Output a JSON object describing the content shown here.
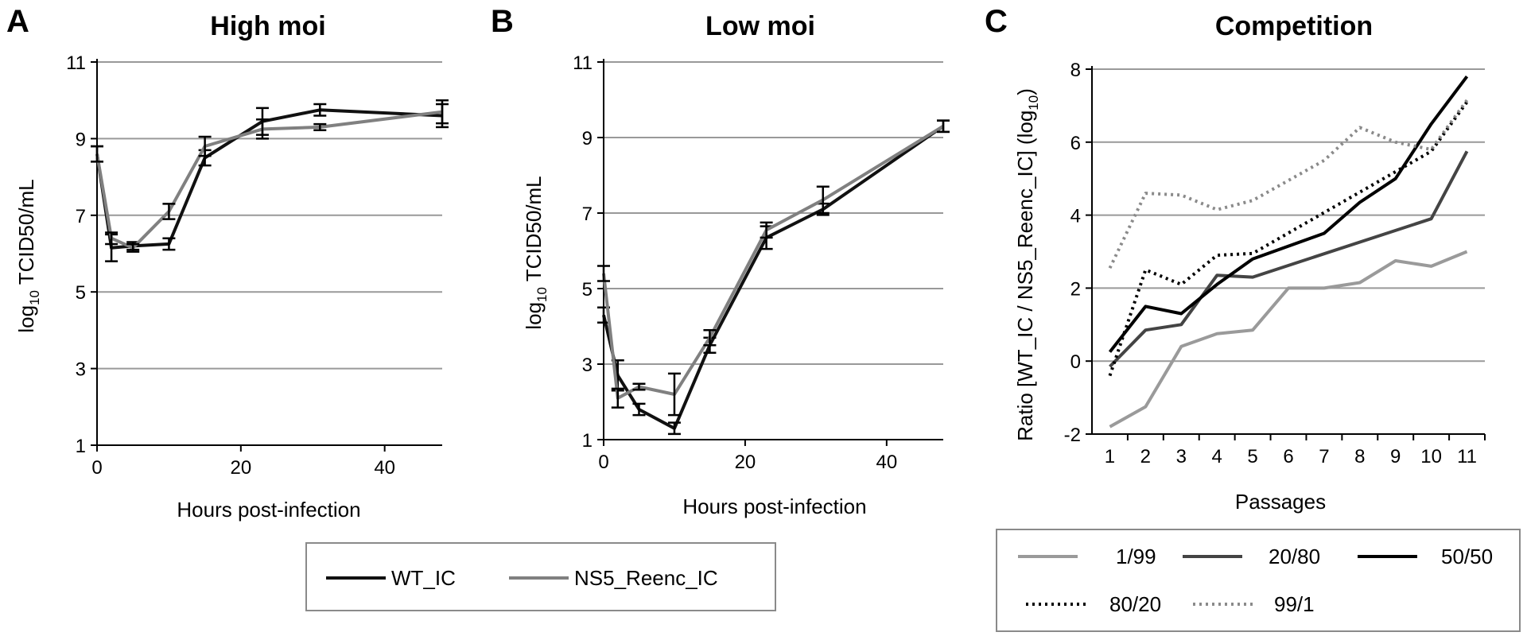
{
  "chart_data": [
    {
      "panel": "A",
      "type": "line",
      "title": "High moi",
      "xlabel": "Hours post-infection",
      "ylabel": {
        "prefix": "log",
        "sub": "10",
        "suffix": " TCID50/mL"
      },
      "xlim": [
        0,
        48
      ],
      "ylim": [
        1,
        11
      ],
      "xticks": [
        0,
        20,
        40
      ],
      "yticks": [
        1,
        3,
        5,
        7,
        9,
        11
      ],
      "grid": "horizontal",
      "series": [
        {
          "name": "WT_IC",
          "color": "#111111",
          "style": "solid",
          "x": [
            0,
            2,
            5,
            10,
            15,
            23,
            31,
            48
          ],
          "y": [
            8.6,
            6.15,
            6.2,
            6.25,
            8.5,
            9.45,
            9.75,
            9.6
          ],
          "err": [
            0.2,
            0.35,
            0.1,
            0.15,
            0.2,
            0.35,
            0.15,
            0.3
          ]
        },
        {
          "name": "NS5_Reenc_IC",
          "color": "#808080",
          "style": "solid",
          "x": [
            0,
            2,
            5,
            10,
            15,
            23,
            31,
            48
          ],
          "y": [
            8.6,
            6.4,
            6.15,
            7.1,
            8.8,
            9.25,
            9.3,
            9.7
          ],
          "err": [
            0.2,
            0.15,
            0.1,
            0.2,
            0.25,
            0.25,
            0.08,
            0.3
          ]
        }
      ]
    },
    {
      "panel": "B",
      "type": "line",
      "title": "Low moi",
      "xlabel": "Hours post-infection",
      "ylabel": {
        "prefix": "log",
        "sub": "10",
        "suffix": " TCID50/mL"
      },
      "xlim": [
        0,
        48
      ],
      "ylim": [
        1,
        11
      ],
      "xticks": [
        0,
        20,
        40
      ],
      "yticks": [
        1,
        3,
        5,
        7,
        9,
        11
      ],
      "grid": "horizontal",
      "series": [
        {
          "name": "WT_IC",
          "color": "#111111",
          "style": "solid",
          "x": [
            0,
            2,
            5,
            10,
            15,
            23,
            31,
            48
          ],
          "y": [
            4.3,
            2.7,
            1.8,
            1.3,
            3.5,
            6.35,
            7.1,
            9.3
          ],
          "err": [
            0.2,
            0.4,
            0.15,
            0.15,
            0.2,
            0.3,
            0.15,
            0.15
          ]
        },
        {
          "name": "NS5_Reenc_IC",
          "color": "#808080",
          "style": "solid",
          "x": [
            0,
            2,
            5,
            10,
            15,
            23,
            31,
            48
          ],
          "y": [
            5.4,
            2.1,
            2.4,
            2.2,
            3.7,
            6.55,
            7.35,
            9.3
          ],
          "err": [
            0.2,
            0.25,
            0.08,
            0.55,
            0.2,
            0.2,
            0.35,
            0.15
          ]
        }
      ]
    },
    {
      "panel": "C",
      "type": "line",
      "title": "Competition",
      "xlabel": "Passages",
      "ylabel": {
        "prefix": "Ratio [WT_IC / NS5_Reenc_IC]  (log",
        "sub": "10",
        "suffix": ")"
      },
      "xlim": [
        0.5,
        11.5
      ],
      "ylim": [
        -2,
        8
      ],
      "xticks": [
        1,
        2,
        3,
        4,
        5,
        6,
        7,
        8,
        9,
        10,
        11
      ],
      "yticks": [
        -2,
        0,
        2,
        4,
        6,
        8
      ],
      "grid": "horizontal",
      "series": [
        {
          "name": "1/99",
          "color": "#9a9a9a",
          "style": "solid",
          "x": [
            1,
            2,
            3,
            4,
            5,
            6,
            7,
            8,
            9,
            10,
            11
          ],
          "y": [
            -1.8,
            -1.25,
            0.4,
            0.75,
            0.85,
            2.0,
            2.0,
            2.15,
            2.75,
            2.6,
            3.0
          ]
        },
        {
          "name": "20/80",
          "color": "#444444",
          "style": "solid",
          "x": [
            1,
            2,
            3,
            4,
            5,
            10,
            11
          ],
          "y": [
            -0.15,
            0.85,
            1.0,
            2.35,
            2.3,
            3.9,
            5.75
          ]
        },
        {
          "name": "50/50",
          "color": "#000000",
          "style": "solid",
          "x": [
            1,
            2,
            3,
            4,
            5,
            6,
            7,
            8,
            9,
            10,
            11
          ],
          "y": [
            0.25,
            1.5,
            1.3,
            2.1,
            2.8,
            3.15,
            3.5,
            4.35,
            5.0,
            6.5,
            7.8
          ]
        },
        {
          "name": "80/20",
          "color": "#000000",
          "style": "dotted",
          "x": [
            1,
            2,
            3,
            4,
            5,
            10,
            11
          ],
          "y": [
            -0.4,
            2.5,
            2.1,
            2.9,
            2.95,
            5.75,
            7.1
          ]
        },
        {
          "name": "99/1",
          "color": "#8a8a8a",
          "style": "dotted",
          "x": [
            1,
            2,
            3,
            4,
            5,
            6,
            7,
            8,
            9,
            10,
            11
          ],
          "y": [
            2.55,
            4.6,
            4.55,
            4.15,
            4.4,
            4.95,
            5.5,
            6.4,
            6.0,
            5.8,
            7.15
          ]
        }
      ]
    }
  ],
  "legends": {
    "growth": [
      "WT_IC",
      "NS5_Reenc_IC"
    ],
    "competition": [
      "1/99",
      "20/80",
      "50/50",
      "80/20",
      "99/1"
    ]
  }
}
